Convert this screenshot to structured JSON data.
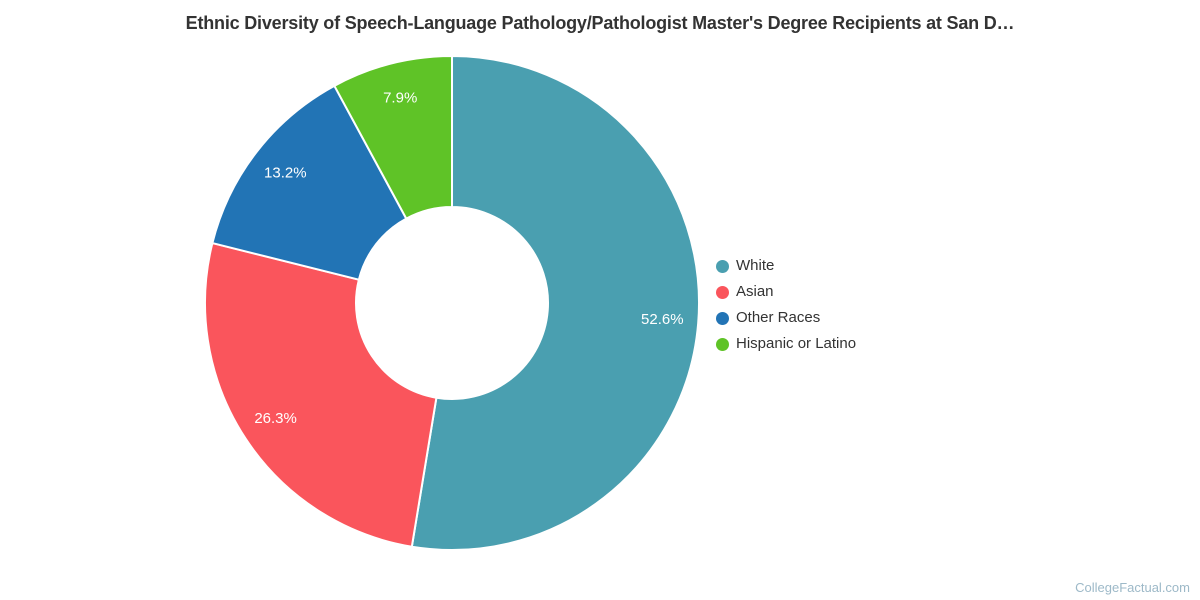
{
  "page": {
    "watermark": "CollegeFactual.com"
  },
  "chart_data": {
    "type": "pie",
    "subtype": "donut",
    "title": "Ethnic Diversity of Speech-Language Pathology/Pathologist Master's Degree Recipients at San D…",
    "legend_position": "right",
    "direction": "clockwise",
    "start_angle_deg": 0,
    "inner_radius_ratio": 0.39,
    "categories": [
      "White",
      "Asian",
      "Other Races",
      "Hispanic or Latino"
    ],
    "values": [
      52.6,
      26.3,
      13.2,
      7.9
    ],
    "segments": [
      {
        "label": "White",
        "value": 52.6,
        "display": "52.6%",
        "color": "#4a9fb0",
        "slug": "white"
      },
      {
        "label": "Asian",
        "value": 26.3,
        "display": "26.3%",
        "color": "#fa555c",
        "slug": "asian"
      },
      {
        "label": "Other Races",
        "value": 13.2,
        "display": "13.2%",
        "color": "#2274b5",
        "slug": "other-races"
      },
      {
        "label": "Hispanic or Latino",
        "value": 7.9,
        "display": "7.9%",
        "color": "#5fc327",
        "slug": "hispanic-or-latino"
      }
    ]
  }
}
